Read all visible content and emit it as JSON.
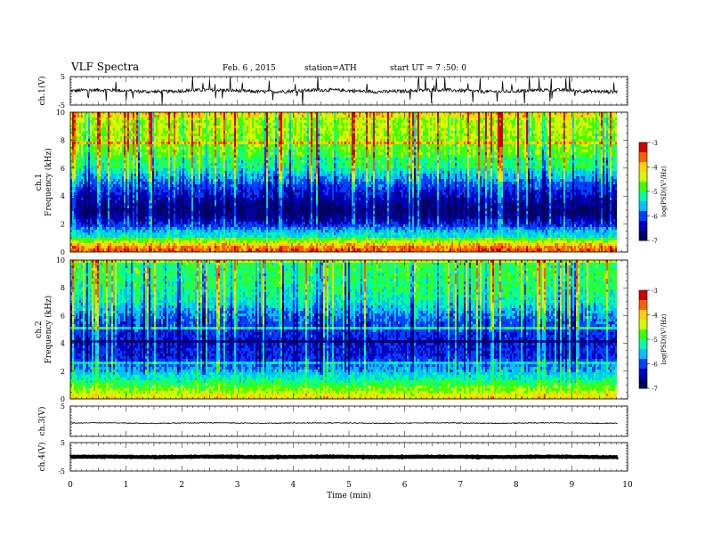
{
  "header": {
    "title": "VLF  Spectra",
    "date": "Feb. 6  , 2015",
    "station": "station=ATH",
    "start": "start  UT  =   7 :50: 0"
  },
  "chart_data": {
    "type": "heatmap",
    "xlabel": "Time  (min)",
    "xlim": [
      0,
      10
    ],
    "xticks": [
      "0",
      "1",
      "2",
      "3",
      "4",
      "5",
      "6",
      "7",
      "8",
      "9",
      "10"
    ],
    "data_end_min": 9.82,
    "panels": [
      {
        "type": "line",
        "ylabel": "ch.1(V)",
        "ylim": [
          -5,
          5
        ],
        "yticks": [
          "5",
          "-5"
        ],
        "baseline": 0.0,
        "noise_amplitude": 0.6,
        "spikes": true
      },
      {
        "type": "heatmap",
        "ylabel_top": "ch.1",
        "ylabel": "Frequency  (kHz)",
        "ylim": [
          0,
          10
        ],
        "yticks": [
          "0",
          "2",
          "4",
          "6",
          "8",
          "10"
        ],
        "colorbar": {
          "label": "log(PSD)(V²/Hz)",
          "range": [
            -7,
            -3
          ],
          "ticks": [
            "-3",
            "-4",
            "-5",
            "-6",
            "-7"
          ]
        },
        "profile": [
          {
            "f_khz": 0.2,
            "logpsd": -3.6
          },
          {
            "f_khz": 0.5,
            "logpsd": -3.9
          },
          {
            "f_khz": 1.0,
            "logpsd": -5.3
          },
          {
            "f_khz": 1.5,
            "logpsd": -5.6
          },
          {
            "f_khz": 2.0,
            "logpsd": -6.2
          },
          {
            "f_khz": 2.5,
            "logpsd": -6.6
          },
          {
            "f_khz": 3.0,
            "logpsd": -6.8
          },
          {
            "f_khz": 4.0,
            "logpsd": -6.4
          },
          {
            "f_khz": 5.0,
            "logpsd": -5.9
          },
          {
            "f_khz": 6.0,
            "logpsd": -5.2
          },
          {
            "f_khz": 7.0,
            "logpsd": -4.8
          },
          {
            "f_khz": 8.0,
            "logpsd": -4.6
          },
          {
            "f_khz": 9.0,
            "logpsd": -4.5
          },
          {
            "f_khz": 10.0,
            "logpsd": -4.5
          }
        ]
      },
      {
        "type": "heatmap",
        "ylabel_top": "ch.2",
        "ylabel": "Frequency  (kHz)",
        "ylim": [
          0,
          10
        ],
        "yticks": [
          "0",
          "2",
          "4",
          "6",
          "8",
          "10"
        ],
        "colorbar": {
          "label": "log(PSD)(V²/Hz)",
          "range": [
            -7,
            -3
          ],
          "ticks": [
            "-3",
            "-4",
            "-5",
            "-6",
            "-7"
          ]
        },
        "profile": [
          {
            "f_khz": 0.2,
            "logpsd": -4.2
          },
          {
            "f_khz": 0.5,
            "logpsd": -4.5
          },
          {
            "f_khz": 1.0,
            "logpsd": -4.9
          },
          {
            "f_khz": 1.5,
            "logpsd": -5.3
          },
          {
            "f_khz": 2.0,
            "logpsd": -5.6
          },
          {
            "f_khz": 3.0,
            "logpsd": -6.2
          },
          {
            "f_khz": 4.0,
            "logpsd": -6.3
          },
          {
            "f_khz": 5.0,
            "logpsd": -6.1
          },
          {
            "f_khz": 6.0,
            "logpsd": -5.8
          },
          {
            "f_khz": 7.0,
            "logpsd": -5.3
          },
          {
            "f_khz": 8.0,
            "logpsd": -5.1
          },
          {
            "f_khz": 9.0,
            "logpsd": -5.0
          },
          {
            "f_khz": 10.0,
            "logpsd": -5.0
          }
        ]
      },
      {
        "type": "line",
        "ylabel": "ch.3(V)",
        "ylim": [
          -5,
          5
        ],
        "yticks": [
          "5"
        ],
        "baseline": -0.6,
        "noise_amplitude": 0.15,
        "spikes": false
      },
      {
        "type": "line",
        "ylabel": "ch.4(V)",
        "ylim": [
          -5,
          5
        ],
        "yticks": [
          "5",
          "-5"
        ],
        "baseline": 0.0,
        "noise_amplitude": 0.12,
        "thick": true,
        "spikes": false
      }
    ],
    "colors": {
      "colormap": [
        "#000060",
        "#0000c0",
        "#0040ff",
        "#00c0ff",
        "#00ffa0",
        "#40ff00",
        "#d0ff00",
        "#ffd000",
        "#ff6000",
        "#d00000"
      ]
    }
  }
}
